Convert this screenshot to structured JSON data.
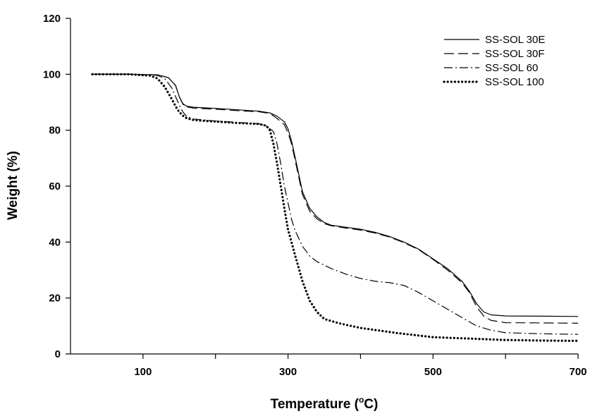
{
  "chart_data": {
    "type": "line",
    "xlabel": "Temperature (",
    "xlabel_sup": "o",
    "xlabel_unit": "C)",
    "ylabel": "Weight (%)",
    "xlim": [
      0,
      700
    ],
    "ylim": [
      0,
      120
    ],
    "x_ticks": [
      100,
      300,
      500,
      700
    ],
    "y_ticks": [
      0,
      20,
      40,
      60,
      80,
      100,
      120
    ],
    "x_tick_labels": [
      "100",
      "300",
      "500",
      "700"
    ],
    "y_tick_labels": [
      "0",
      "20",
      "40",
      "60",
      "80",
      "100",
      "120"
    ],
    "grid": false,
    "legend_position": "top-right",
    "series": [
      {
        "name": "SS-SOL 30E",
        "style": "solid",
        "x": [
          30,
          80,
          120,
          135,
          145,
          150,
          155,
          160,
          170,
          200,
          230,
          260,
          275,
          285,
          295,
          300,
          305,
          310,
          315,
          320,
          330,
          340,
          350,
          360,
          380,
          400,
          420,
          440,
          460,
          480,
          500,
          520,
          540,
          550,
          560,
          570,
          580,
          600,
          650,
          700
        ],
        "y": [
          100,
          100,
          99.8,
          98.8,
          96,
          92,
          89.5,
          88.6,
          88.2,
          87.8,
          87.3,
          86.8,
          86.2,
          85,
          83,
          80.5,
          76,
          70,
          64,
          58,
          52,
          49,
          47,
          46,
          45.3,
          44.6,
          43.5,
          42,
          40,
          37.5,
          34,
          30.5,
          26,
          22.5,
          18,
          15,
          14,
          13.6,
          13.5,
          13.4
        ]
      },
      {
        "name": "SS-SOL 30F",
        "style": "dashed",
        "x": [
          30,
          80,
          120,
          135,
          145,
          150,
          155,
          160,
          170,
          200,
          230,
          260,
          275,
          285,
          295,
          300,
          305,
          310,
          315,
          320,
          330,
          340,
          350,
          360,
          380,
          400,
          420,
          440,
          460,
          480,
          500,
          520,
          540,
          550,
          560,
          570,
          580,
          600,
          650,
          700
        ],
        "y": [
          100,
          100,
          99.8,
          98.8,
          96,
          92,
          89.3,
          88.3,
          87.9,
          87.5,
          87,
          86.6,
          86,
          84.2,
          82,
          79,
          75,
          69,
          63,
          57,
          51,
          48.3,
          46.6,
          45.8,
          45,
          44.3,
          43.2,
          41.8,
          39.8,
          37.3,
          33.8,
          30,
          25.5,
          22,
          17,
          13.5,
          12,
          11.2,
          11.1,
          11
        ]
      },
      {
        "name": "SS-SOL 60",
        "style": "dashdot",
        "x": [
          30,
          80,
          120,
          130,
          140,
          145,
          150,
          155,
          160,
          170,
          200,
          230,
          260,
          270,
          280,
          285,
          290,
          295,
          300,
          305,
          310,
          320,
          330,
          340,
          360,
          380,
          400,
          420,
          440,
          460,
          480,
          500,
          520,
          540,
          550,
          560,
          580,
          600,
          650,
          700
        ],
        "y": [
          100,
          100,
          99.6,
          98.5,
          95,
          92,
          89,
          86.5,
          85,
          84,
          83.3,
          82.8,
          82.3,
          81.5,
          79.5,
          75,
          68,
          60,
          54,
          48,
          44,
          38.5,
          35,
          33,
          30.5,
          28.5,
          27,
          26,
          25.5,
          24.5,
          22,
          19,
          16,
          13,
          11.5,
          10,
          8.5,
          7.6,
          7.2,
          7
        ]
      },
      {
        "name": "SS-SOL 100",
        "style": "dotted",
        "x": [
          30,
          80,
          110,
          120,
          130,
          140,
          145,
          150,
          155,
          160,
          170,
          200,
          230,
          260,
          270,
          275,
          280,
          285,
          290,
          295,
          300,
          310,
          320,
          330,
          340,
          350,
          370,
          400,
          450,
          500,
          550,
          600,
          650,
          700
        ],
        "y": [
          100,
          100,
          99.5,
          98.5,
          95.5,
          91,
          88.5,
          86.5,
          85.2,
          84.3,
          83.6,
          83.1,
          82.6,
          82.2,
          81.6,
          80,
          75,
          68,
          60,
          52,
          44.5,
          35,
          26,
          19,
          15,
          12.5,
          11,
          9.3,
          7.5,
          6,
          5.5,
          5,
          4.8,
          4.7
        ]
      }
    ]
  }
}
